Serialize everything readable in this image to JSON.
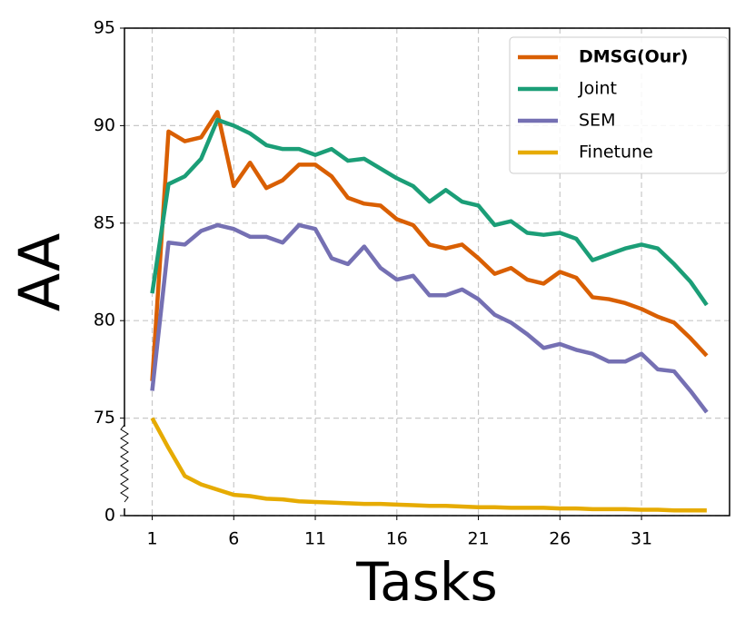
{
  "chart_data": {
    "type": "line",
    "xlabel": "Tasks",
    "ylabel": "AA",
    "x": [
      1,
      2,
      3,
      4,
      5,
      6,
      7,
      8,
      9,
      10,
      11,
      12,
      13,
      14,
      15,
      16,
      17,
      18,
      19,
      20,
      21,
      22,
      23,
      24,
      25,
      26,
      27,
      28,
      29,
      30,
      31,
      32,
      33,
      34,
      35
    ],
    "xlim": [
      -0.7,
      36.4
    ],
    "xticks": [
      1,
      6,
      11,
      16,
      21,
      26,
      31
    ],
    "ylim": [
      0,
      95
    ],
    "yticks": [
      0,
      75,
      80,
      85,
      90,
      95
    ],
    "y_break": 75,
    "grid": true,
    "legend": "upper right",
    "series": [
      {
        "name": "DMSG(Our)",
        "color": "#d95f02",
        "values": [
          76.9,
          89.7,
          89.2,
          89.4,
          90.7,
          86.9,
          88.1,
          86.8,
          87.2,
          88.0,
          88.0,
          87.4,
          86.3,
          86.0,
          85.9,
          85.2,
          84.9,
          83.9,
          83.7,
          83.9,
          83.2,
          82.4,
          82.7,
          82.1,
          81.9,
          82.5,
          82.2,
          81.2,
          81.1,
          80.9,
          80.6,
          80.2,
          79.9,
          79.1,
          78.2
        ]
      },
      {
        "name": "Joint",
        "color": "#1b9e77",
        "values": [
          81.4,
          87.0,
          87.4,
          88.3,
          90.3,
          90.0,
          89.6,
          89.0,
          88.8,
          88.8,
          88.5,
          88.8,
          88.2,
          88.3,
          87.8,
          87.3,
          86.9,
          86.1,
          86.7,
          86.1,
          85.9,
          84.9,
          85.1,
          84.5,
          84.4,
          84.5,
          84.2,
          83.1,
          83.4,
          83.7,
          83.9,
          83.7,
          82.9,
          82.0,
          80.8
        ]
      },
      {
        "name": "SEM",
        "color": "#7570b3",
        "values": [
          76.4,
          84.0,
          83.9,
          84.6,
          84.9,
          84.7,
          84.3,
          84.3,
          84.0,
          84.9,
          84.7,
          83.2,
          82.9,
          83.8,
          82.7,
          82.1,
          82.3,
          81.3,
          81.3,
          81.6,
          81.1,
          80.3,
          79.9,
          79.3,
          78.6,
          78.8,
          78.5,
          78.3,
          77.9,
          77.9,
          78.3,
          77.5,
          77.4,
          76.4,
          75.3
        ]
      },
      {
        "name": "Finetune",
        "color": "#e6ab02",
        "values": [
          75,
          52,
          30.5,
          24,
          20,
          16,
          15,
          13,
          12.5,
          11,
          10.5,
          10,
          9.5,
          9,
          9,
          8.5,
          8,
          7.5,
          7.5,
          7,
          6.5,
          6.5,
          6,
          6,
          6,
          5.5,
          5.5,
          5,
          5,
          5,
          4.5,
          4.5,
          4,
          4,
          4
        ]
      }
    ]
  }
}
